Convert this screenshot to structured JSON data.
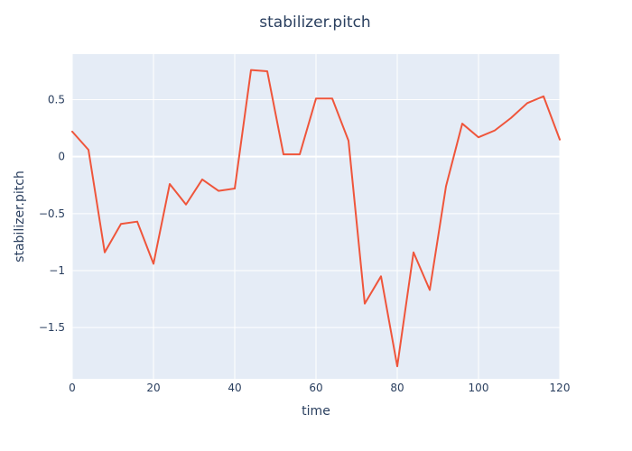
{
  "chart_data": {
    "type": "line",
    "title": "stabilizer.pitch",
    "xlabel": "time",
    "ylabel": "stabilizer.pitch",
    "xlim": [
      0,
      120
    ],
    "ylim": [
      -1.95,
      0.9
    ],
    "grid": true,
    "legend": "none",
    "x_ticks": [
      0,
      20,
      40,
      60,
      80,
      100,
      120
    ],
    "y_ticks": [
      0.5,
      0,
      -0.5,
      -1,
      -1.5
    ],
    "x_tick_labels": [
      "0",
      "20",
      "40",
      "60",
      "80",
      "100",
      "120"
    ],
    "y_tick_labels": [
      "0.5",
      "0",
      "−0.5",
      "−1",
      "−1.5"
    ],
    "series": [
      {
        "color": "#EF553B",
        "x": [
          0,
          4,
          8,
          12,
          16,
          20,
          24,
          28,
          32,
          36,
          40,
          44,
          48,
          52,
          56,
          60,
          64,
          68,
          72,
          76,
          80,
          84,
          88,
          92,
          96,
          100,
          104,
          108,
          112,
          116,
          120
        ],
        "y": [
          0.22,
          0.06,
          -0.84,
          -0.59,
          -0.57,
          -0.94,
          -0.24,
          -0.42,
          -0.2,
          -0.3,
          -0.28,
          0.76,
          0.75,
          0.02,
          0.02,
          0.51,
          0.51,
          0.14,
          -1.29,
          -1.05,
          -1.84,
          -0.84,
          -1.17,
          -0.26,
          0.29,
          0.17,
          0.23,
          0.34,
          0.47,
          0.53,
          0.15
        ]
      }
    ]
  },
  "colors": {
    "plot_background": "#E5ECF6",
    "gridline": "#ffffff",
    "text": "#2a3f5f"
  }
}
